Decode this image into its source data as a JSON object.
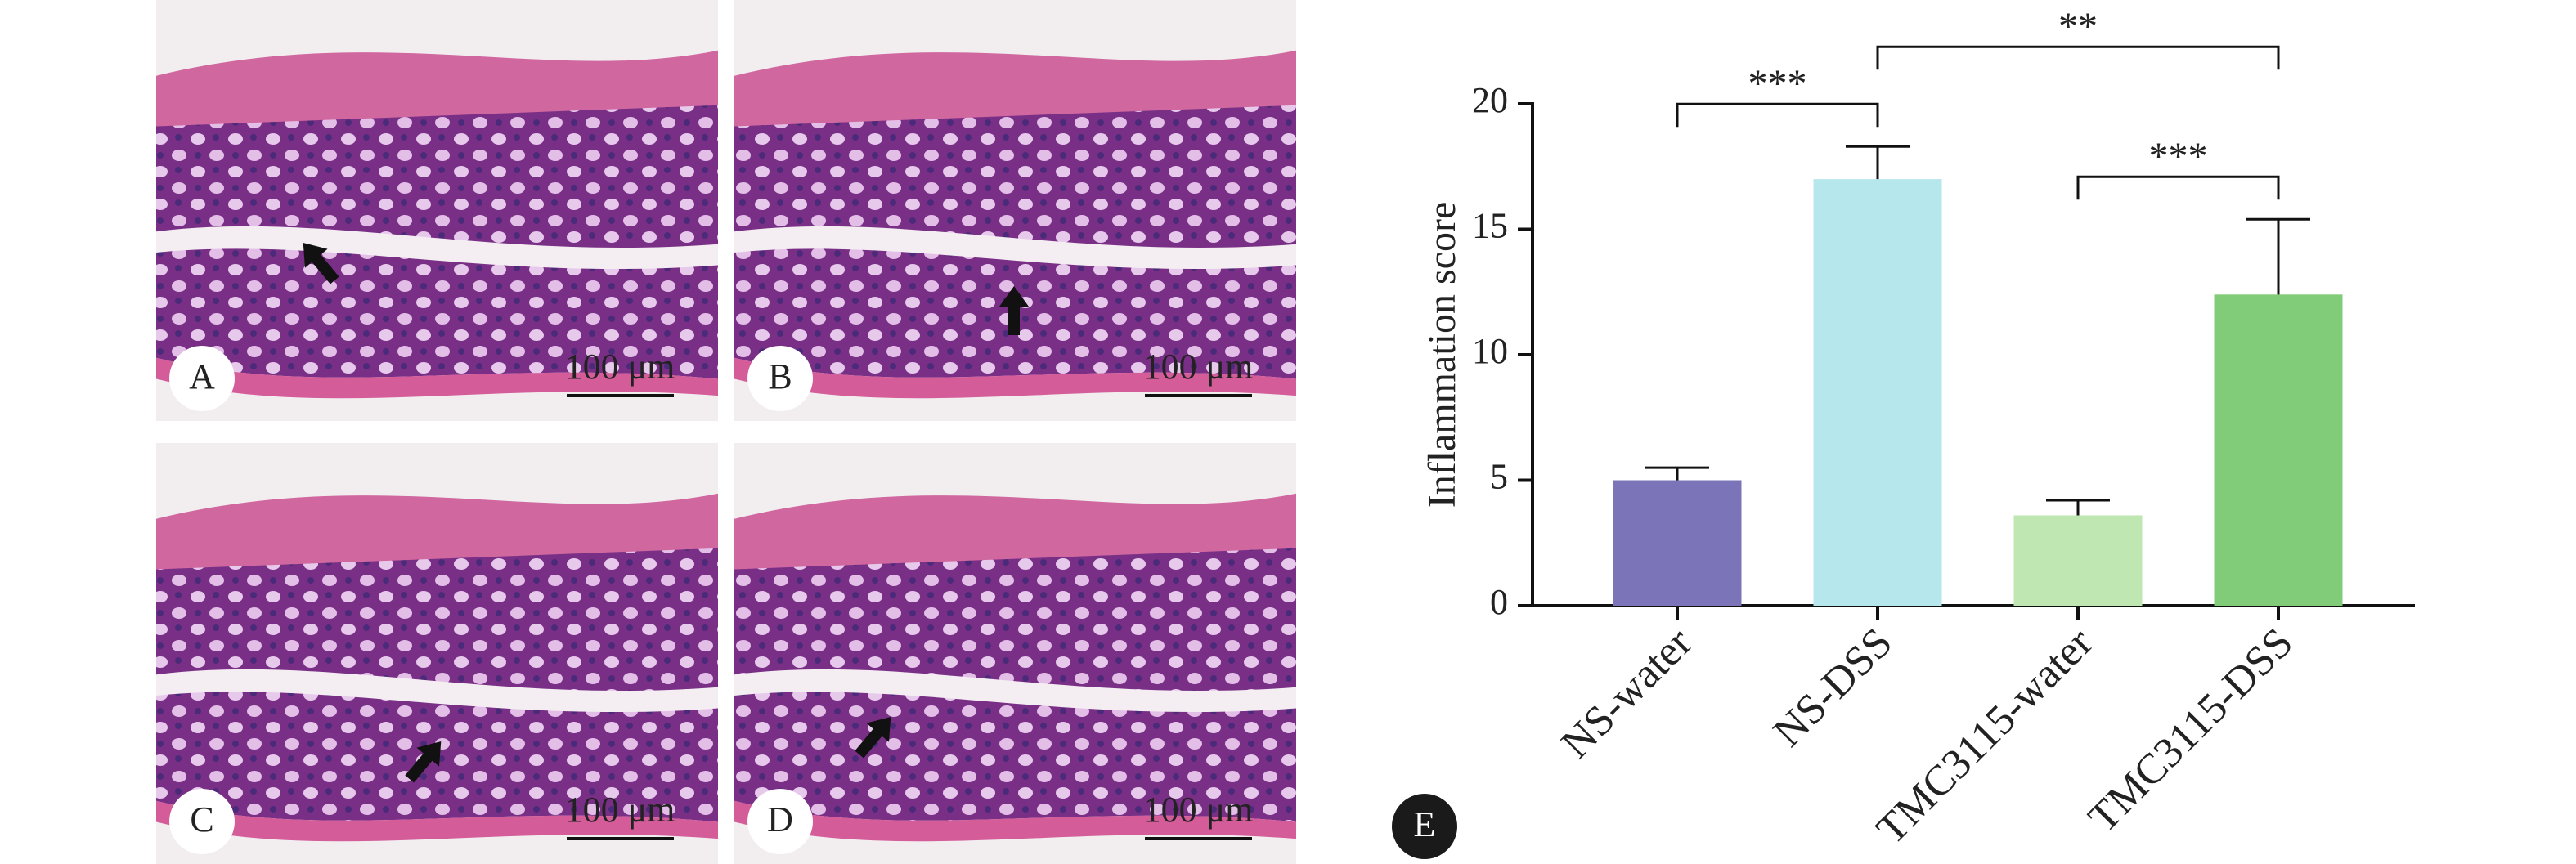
{
  "panels": [
    {
      "label": "A",
      "scale_bar": "100 μm"
    },
    {
      "label": "B",
      "scale_bar": "100 μm"
    },
    {
      "label": "C",
      "scale_bar": "100 μm"
    },
    {
      "label": "D",
      "scale_bar": "100 μm"
    }
  ],
  "chart_data": {
    "type": "bar",
    "panel_label": "E",
    "y_label": "Inflammation score",
    "categories": [
      "NS-water",
      "NS-DSS",
      "TMC3115-water",
      "TMC3115-DSS"
    ],
    "values": [
      5.0,
      17.0,
      3.6,
      12.4
    ],
    "errors": [
      0.5,
      1.3,
      0.6,
      3.0
    ],
    "colors": [
      "#7b74b8",
      "#b6e7ec",
      "#bfe7b2",
      "#80cc78"
    ],
    "ylim": [
      0,
      20
    ],
    "yticks": [
      0,
      5,
      10,
      15,
      20
    ],
    "significance": [
      {
        "text": "***",
        "from": 0,
        "to": 1
      },
      {
        "text": "**",
        "from": 1,
        "to": 3
      },
      {
        "text": "***",
        "from": 2,
        "to": 3
      }
    ]
  }
}
